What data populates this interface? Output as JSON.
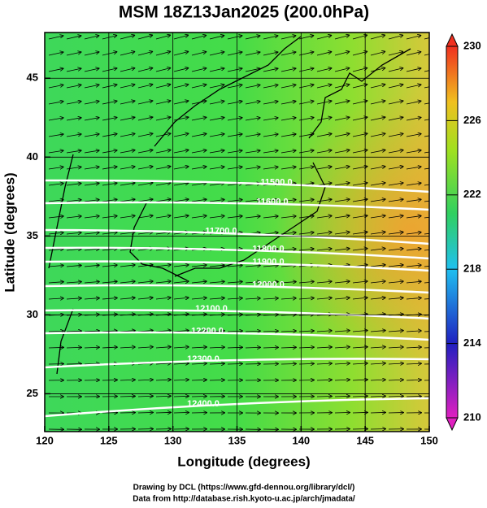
{
  "chart_data": {
    "type": "map",
    "title": "MSM 18Z13Jan2025 (200.0hPa)",
    "xlabel": "Longitude (degrees)",
    "ylabel": "Latitude  (degrees)",
    "xlim": [
      120,
      150
    ],
    "ylim": [
      22.6,
      47.9
    ],
    "xticks": [
      120,
      125,
      130,
      135,
      140,
      145,
      150
    ],
    "yticks": [
      25,
      30,
      35,
      40,
      45
    ],
    "grid": true,
    "colorbar": {
      "lim": [
        210,
        230
      ],
      "ticks": [
        210,
        214,
        218,
        222,
        226,
        230
      ]
    },
    "contours": [
      {
        "value": 11500,
        "label": "11500.0"
      },
      {
        "value": 11600,
        "label": "11600.0"
      },
      {
        "value": 11700,
        "label": "11700.0"
      },
      {
        "value": 11800,
        "label": "11800.0"
      },
      {
        "value": 11900,
        "label": "11900.0"
      },
      {
        "value": 12000,
        "label": "12000.0"
      },
      {
        "value": 12100,
        "label": "12100.0"
      },
      {
        "value": 12200,
        "label": "12200.0"
      },
      {
        "value": 12300,
        "label": "12300.0"
      },
      {
        "value": 12400,
        "label": "12400.0"
      }
    ],
    "footer": [
      "Drawing by DCL (https://www.gfd-dennou.org/library/dcl/)",
      "Data from http://database.rish.kyoto-u.ac.jp/arch/jmadata/"
    ]
  }
}
